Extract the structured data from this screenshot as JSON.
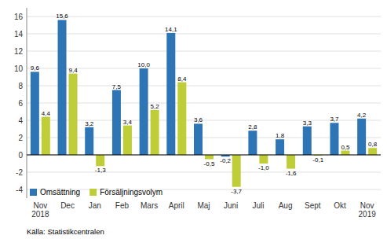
{
  "chart_data": {
    "type": "bar",
    "categories": [
      "Nov\n2018",
      "Dec",
      "Jan",
      "Feb",
      "Mars",
      "April",
      "Maj",
      "Juni",
      "Juli",
      "Aug",
      "Sept",
      "Okt",
      "Nov\n2019"
    ],
    "series": [
      {
        "name": "Omsättning",
        "color": "#2E75B6",
        "values": [
          9.6,
          15.6,
          3.2,
          7.5,
          10.0,
          14.1,
          3.6,
          -0.2,
          2.8,
          1.8,
          3.3,
          3.7,
          4.2
        ],
        "value_labels": [
          "9,6",
          "15,6",
          "3,2",
          "7,5",
          "10,0",
          "14,1",
          "3,6",
          "-0,2",
          "2,8",
          "1,8",
          "3,3",
          "3,7",
          "4,2"
        ]
      },
      {
        "name": "Försäljningsvolym",
        "color": "#BFCE38",
        "values": [
          4.4,
          9.4,
          -1.3,
          3.4,
          5.2,
          8.4,
          -0.5,
          -3.7,
          -1.0,
          -1.6,
          -0.1,
          0.5,
          0.8
        ],
        "value_labels": [
          "4,4",
          "9,4",
          "-1,3",
          "3,4",
          "5,2",
          "8,4",
          "-0,5",
          "-3,7",
          "-1,0",
          "-1,6",
          "-0,1",
          "0,5",
          "0,8"
        ]
      }
    ],
    "ylim": [
      -5,
      17
    ],
    "yticks": [
      -4,
      -2,
      0,
      2,
      4,
      6,
      8,
      10,
      12,
      14,
      16
    ],
    "grid": true,
    "legend": "lower left",
    "data_labels": true,
    "source": "Källa: Statistikcentralen"
  }
}
